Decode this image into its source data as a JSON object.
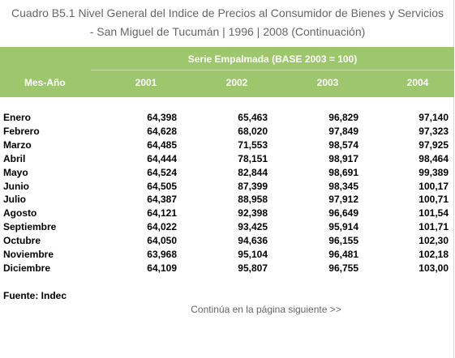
{
  "header": {
    "title_line1": "Cuadro B5.1 Nivel General del Indice de Precios al Consumidor de Bienes y Servicios",
    "title_line2": "- San Miguel de Tucumán | 1996 | 2008 (Continuación)"
  },
  "table": {
    "group_header": "Serie Empalmada (BASE 2003 = 100)",
    "row_header": "Mes-Año",
    "columns": [
      "2001",
      "2002",
      "2003",
      "2004"
    ],
    "rows": [
      [
        "Enero",
        "64,398",
        "65,463",
        "96,829",
        "97,140"
      ],
      [
        "Febrero",
        "64,628",
        "68,020",
        "97,849",
        "97,323"
      ],
      [
        "Marzo",
        "64,485",
        "71,553",
        "98,574",
        "97,925"
      ],
      [
        "Abril",
        "64,444",
        "78,151",
        "98,917",
        "98,464"
      ],
      [
        "Mayo",
        "64,524",
        "82,844",
        "98,691",
        "99,389"
      ],
      [
        "Junio",
        "64,505",
        "87,399",
        "98,345",
        "100,17"
      ],
      [
        "Julio",
        "64,387",
        "88,958",
        "97,912",
        "100,71"
      ],
      [
        "Agosto",
        "64,121",
        "92,398",
        "96,649",
        "101,54"
      ],
      [
        "Septiembre",
        "64,022",
        "93,425",
        "95,914",
        "101,71"
      ],
      [
        "Octubre",
        "64,050",
        "94,636",
        "96,155",
        "102,30"
      ],
      [
        "Noviembre",
        "63,968",
        "95,104",
        "96,481",
        "102,18"
      ],
      [
        "Diciembre",
        "64,109",
        "95,807",
        "96,755",
        "103,00"
      ]
    ]
  },
  "footer": {
    "source": "Fuente: Indec",
    "continue": "Continúa en la página siguiente >>"
  }
}
